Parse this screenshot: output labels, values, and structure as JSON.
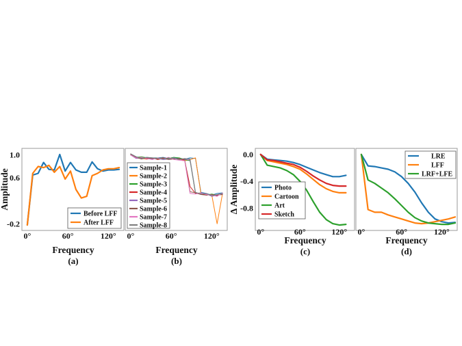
{
  "chart_data": [
    {
      "type": "line",
      "panel": "a",
      "caption": "(a)",
      "xlabel": "Frequency",
      "ylabel": "Amplitude",
      "xlim": [
        -5,
        140
      ],
      "ylim": [
        -0.28,
        1.08
      ],
      "xticks": [
        0,
        60,
        120
      ],
      "xtick_labels": [
        "0°",
        "60°",
        "120°"
      ],
      "yticks": [
        1.0,
        0.6,
        0.2,
        -0.2
      ],
      "ytick_labels": [
        "1.0",
        "0.6",
        "",
        "-0.2"
      ],
      "legend_position": "lower-right",
      "series": [
        {
          "name": "Before LFF",
          "color": "#1f77b4",
          "x": [
            0,
            8,
            16,
            24,
            32,
            40,
            48,
            56,
            64,
            72,
            80,
            88,
            96,
            104,
            112,
            120,
            128,
            136
          ],
          "y": [
            -0.22,
            0.65,
            0.68,
            0.87,
            0.75,
            0.74,
            1.01,
            0.72,
            0.87,
            0.74,
            0.7,
            0.7,
            0.88,
            0.76,
            0.72,
            0.74,
            0.74,
            0.75
          ]
        },
        {
          "name": "After LFF",
          "color": "#ff7f0e",
          "x": [
            0,
            8,
            16,
            24,
            32,
            40,
            48,
            56,
            64,
            72,
            80,
            88,
            96,
            104,
            112,
            120,
            128,
            136
          ],
          "y": [
            -0.22,
            0.68,
            0.8,
            0.78,
            0.82,
            0.7,
            0.8,
            0.58,
            0.72,
            0.4,
            0.25,
            0.28,
            0.64,
            0.68,
            0.74,
            0.76,
            0.76,
            0.78
          ]
        }
      ]
    },
    {
      "type": "line",
      "panel": "b",
      "caption": "(b)",
      "xlabel": "Frequency",
      "ylabel": "",
      "xlim": [
        -5,
        140
      ],
      "ylim": [
        -0.28,
        1.08
      ],
      "xticks": [
        0,
        60,
        120
      ],
      "xtick_labels": [
        "0°",
        "60°",
        "120°"
      ],
      "legend_position": "left",
      "series": [
        {
          "name": "Sample-1",
          "color": "#1f77b4",
          "x": [
            0,
            8,
            16,
            24,
            32,
            40,
            48,
            56,
            64,
            72,
            80,
            88,
            96,
            104,
            112,
            120,
            128,
            136
          ],
          "y": [
            1.02,
            0.97,
            0.95,
            0.96,
            0.95,
            0.95,
            0.96,
            0.94,
            0.96,
            0.94,
            0.93,
            0.95,
            0.94,
            0.35,
            0.33,
            0.3,
            0.33,
            0.34
          ]
        },
        {
          "name": "Sample-2",
          "color": "#ff7f0e",
          "x": [
            0,
            8,
            16,
            24,
            32,
            40,
            48,
            56,
            64,
            72,
            80,
            88,
            96,
            104,
            112,
            120,
            128,
            136
          ],
          "y": [
            1.02,
            0.95,
            0.94,
            0.93,
            0.94,
            0.94,
            0.95,
            0.93,
            0.94,
            0.93,
            0.9,
            0.92,
            0.95,
            0.33,
            0.3,
            0.31,
            -0.2,
            0.33
          ]
        },
        {
          "name": "Sample-3",
          "color": "#2ca02c",
          "x": [
            0,
            8,
            16,
            24,
            32,
            40,
            48,
            56,
            64,
            72,
            80,
            88,
            96,
            104,
            112,
            120,
            128,
            136
          ],
          "y": [
            1.0,
            0.96,
            0.97,
            0.95,
            0.94,
            0.95,
            0.93,
            0.94,
            0.96,
            0.95,
            0.92,
            0.9,
            0.33,
            0.34,
            0.3,
            0.32,
            0.3,
            0.32
          ]
        },
        {
          "name": "Sample-4",
          "color": "#d62728",
          "x": [
            0,
            8,
            16,
            24,
            32,
            40,
            48,
            56,
            64,
            72,
            80,
            88,
            96,
            104,
            112,
            120,
            128,
            136
          ],
          "y": [
            1.01,
            0.95,
            0.96,
            0.93,
            0.95,
            0.92,
            0.94,
            0.95,
            0.94,
            0.93,
            0.91,
            0.45,
            0.33,
            0.32,
            0.31,
            0.3,
            0.29,
            0.33
          ]
        },
        {
          "name": "Sample-5",
          "color": "#9467bd",
          "x": [
            0,
            8,
            16,
            24,
            32,
            40,
            48,
            56,
            64,
            72,
            80,
            88,
            96,
            104,
            112,
            120,
            128,
            136
          ],
          "y": [
            1.0,
            0.94,
            0.95,
            0.94,
            0.93,
            0.94,
            0.92,
            0.93,
            0.95,
            0.92,
            0.93,
            0.91,
            0.34,
            0.33,
            0.32,
            0.28,
            0.3,
            0.32
          ]
        },
        {
          "name": "Sample-6",
          "color": "#8c564b",
          "x": [
            0,
            8,
            16,
            24,
            32,
            40,
            48,
            56,
            64,
            72,
            80,
            88,
            96,
            104,
            112,
            120,
            128,
            136
          ],
          "y": [
            1.01,
            0.96,
            0.93,
            0.95,
            0.94,
            0.93,
            0.95,
            0.92,
            0.93,
            0.94,
            0.92,
            0.36,
            0.34,
            0.31,
            0.3,
            0.31,
            0.3,
            0.31
          ]
        },
        {
          "name": "Sample-7",
          "color": "#e377c2",
          "x": [
            0,
            8,
            16,
            24,
            32,
            40,
            48,
            56,
            64,
            72,
            80,
            88,
            96,
            104,
            112,
            120,
            128,
            136
          ],
          "y": [
            1.0,
            0.95,
            0.96,
            0.94,
            0.92,
            0.95,
            0.93,
            0.96,
            0.92,
            0.91,
            0.9,
            0.33,
            0.32,
            0.34,
            0.31,
            0.3,
            0.28,
            0.34
          ]
        },
        {
          "name": "Sample-8",
          "color": "#7f7f7f",
          "x": [
            0,
            8,
            16,
            24,
            32,
            40,
            48,
            56,
            64,
            72,
            80,
            88,
            96,
            104,
            112,
            120,
            128,
            136
          ],
          "y": [
            1.02,
            0.97,
            0.94,
            0.96,
            0.95,
            0.94,
            0.93,
            0.95,
            0.94,
            0.92,
            0.94,
            0.93,
            0.35,
            0.32,
            0.33,
            0.29,
            0.31,
            0.33
          ]
        }
      ]
    },
    {
      "type": "line",
      "panel": "c",
      "caption": "(c)",
      "xlabel": "Frequency",
      "ylabel": "Δ Amplitude",
      "xlim": [
        -5,
        140
      ],
      "ylim": [
        -1.1,
        0.06
      ],
      "xticks": [
        0,
        60,
        120
      ],
      "xtick_labels": [
        "0°",
        "60°",
        "120°"
      ],
      "yticks": [
        0.0,
        -0.4,
        -0.8
      ],
      "ytick_labels": [
        "0.0",
        "-0.4",
        "-0.8"
      ],
      "legend_position": "lower-left",
      "series": [
        {
          "name": "Photo",
          "color": "#1f77b4",
          "x": [
            0,
            10,
            20,
            30,
            40,
            50,
            60,
            70,
            80,
            90,
            100,
            110,
            120,
            130
          ],
          "y": [
            0.0,
            -0.07,
            -0.08,
            -0.09,
            -0.1,
            -0.12,
            -0.15,
            -0.19,
            -0.23,
            -0.27,
            -0.3,
            -0.33,
            -0.33,
            -0.31
          ]
        },
        {
          "name": "Cartoon",
          "color": "#ff7f0e",
          "x": [
            0,
            10,
            20,
            30,
            40,
            50,
            60,
            70,
            80,
            90,
            100,
            110,
            120,
            130
          ],
          "y": [
            0.0,
            -0.09,
            -0.11,
            -0.13,
            -0.15,
            -0.18,
            -0.22,
            -0.29,
            -0.37,
            -0.45,
            -0.51,
            -0.55,
            -0.57,
            -0.57
          ]
        },
        {
          "name": "Art",
          "color": "#2ca02c",
          "x": [
            0,
            10,
            20,
            30,
            40,
            50,
            60,
            70,
            80,
            90,
            100,
            110,
            120,
            130
          ],
          "y": [
            0.0,
            -0.16,
            -0.18,
            -0.2,
            -0.24,
            -0.3,
            -0.4,
            -0.53,
            -0.7,
            -0.86,
            -0.97,
            -1.03,
            -1.05,
            -1.04
          ]
        },
        {
          "name": "Sketch",
          "color": "#d62728",
          "x": [
            0,
            10,
            20,
            30,
            40,
            50,
            60,
            70,
            80,
            90,
            100,
            110,
            120,
            130
          ],
          "y": [
            0.0,
            -0.08,
            -0.09,
            -0.11,
            -0.13,
            -0.15,
            -0.19,
            -0.25,
            -0.32,
            -0.38,
            -0.43,
            -0.46,
            -0.47,
            -0.47
          ]
        }
      ]
    },
    {
      "type": "line",
      "panel": "d",
      "caption": "(d)",
      "xlabel": "Frequency",
      "ylabel": "",
      "xlim": [
        -5,
        140
      ],
      "ylim": [
        -1.1,
        0.06
      ],
      "xticks": [
        0,
        60,
        120
      ],
      "xtick_labels": [
        "0°",
        "60°",
        "120°"
      ],
      "legend_position": "top-right",
      "series": [
        {
          "name": "LRE",
          "color": "#1f77b4",
          "x": [
            0,
            10,
            20,
            30,
            40,
            50,
            60,
            70,
            80,
            90,
            100,
            110,
            120,
            130,
            140
          ],
          "y": [
            0.0,
            -0.17,
            -0.18,
            -0.2,
            -0.22,
            -0.26,
            -0.33,
            -0.43,
            -0.56,
            -0.72,
            -0.86,
            -0.96,
            -1.0,
            -1.02,
            -1.01
          ]
        },
        {
          "name": "LFF",
          "color": "#ff7f0e",
          "x": [
            0,
            10,
            20,
            30,
            40,
            50,
            60,
            70,
            80,
            90,
            100,
            110,
            120,
            130,
            140
          ],
          "y": [
            0.0,
            -0.82,
            -0.86,
            -0.86,
            -0.9,
            -0.93,
            -0.96,
            -0.99,
            -1.02,
            -1.03,
            -1.02,
            -1.0,
            -0.98,
            -0.96,
            -0.93
          ]
        },
        {
          "name": "LRF+LFE",
          "color": "#2ca02c",
          "x": [
            0,
            10,
            20,
            30,
            40,
            50,
            60,
            70,
            80,
            90,
            100,
            110,
            120,
            130,
            140
          ],
          "y": [
            0.0,
            -0.38,
            -0.43,
            -0.5,
            -0.57,
            -0.66,
            -0.76,
            -0.86,
            -0.94,
            -0.99,
            -1.02,
            -1.03,
            -1.04,
            -1.04,
            -1.02
          ]
        }
      ]
    }
  ]
}
